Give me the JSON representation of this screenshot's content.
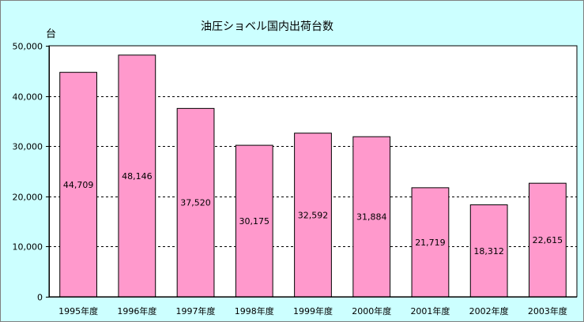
{
  "chart_data": {
    "type": "bar",
    "title": "油圧ショベル国内出荷台数",
    "ylabel": "台",
    "xlabel": "",
    "categories": [
      "1995年度",
      "1996年度",
      "1997年度",
      "1998年度",
      "1999年度",
      "2000年度",
      "2001年度",
      "2002年度",
      "2003年度"
    ],
    "values": [
      44709,
      48146,
      37520,
      30175,
      32592,
      31884,
      21719,
      18312,
      22615
    ],
    "value_labels": [
      "44,709",
      "48,146",
      "37,520",
      "30,175",
      "32,592",
      "31,884",
      "21,719",
      "18,312",
      "22,615"
    ],
    "ylim": [
      0,
      50000
    ],
    "yticks": [
      0,
      10000,
      20000,
      30000,
      40000,
      50000
    ],
    "ytick_labels": [
      "0",
      "10,000",
      "20,000",
      "30,000",
      "40,000",
      "50,000"
    ],
    "grid": true,
    "grid_style": "dashed",
    "colors": {
      "background": "#CCFFFF",
      "plot_area": "#FFFFFF",
      "bar_fill": "#FF99CC",
      "bar_stroke": "#000000",
      "grid": "#000000",
      "axis": "#000000",
      "frame": "#808080"
    }
  }
}
